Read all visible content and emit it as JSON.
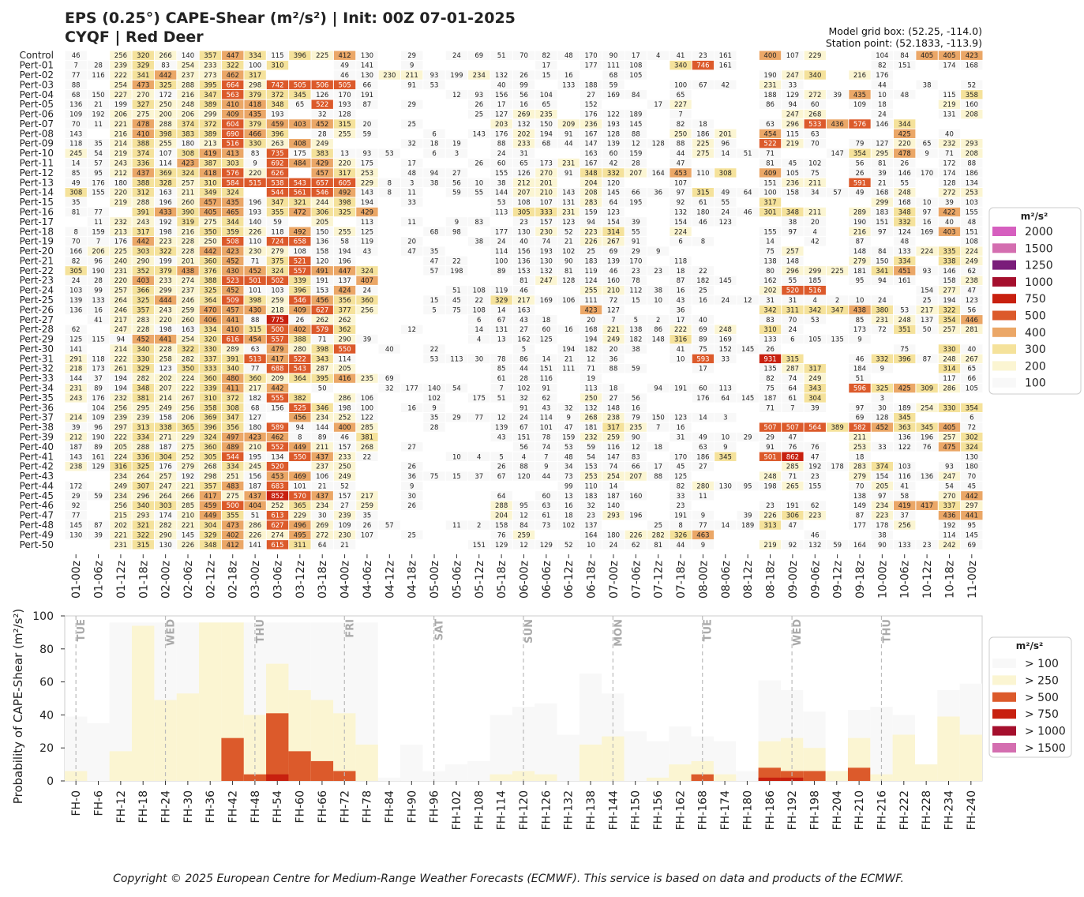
{
  "title": {
    "line1": "EPS (0.25°) CAPE-Shear (m²/s²) | Init: 00Z 07-01-2025",
    "line2": "CYQF | Red Deer"
  },
  "meta": {
    "grid_box": "Model grid box: (52.25, -114.0)",
    "station": "Station point: (52.1833, -113.9)"
  },
  "copyright": "Copyright © 2025 European Centre for Medium-Range Weather Forecasts (ECMWF). This service is based on data and products of the ECMWF.",
  "colors": {
    "c100": "#f8f8f8",
    "c200": "#fbf5d2",
    "c300": "#f5e29b",
    "c400": "#eba767",
    "c500": "#dc5a2b",
    "c750": "#c8200f",
    "c1000": "#a50f2d",
    "c1250": "#7a1d7a",
    "c1500": "#d46eb0",
    "c2000": "#d65fbf"
  },
  "chart_data": [
    {
      "type": "heatmap",
      "title": "",
      "x_tick_labels": [
        "01-00z",
        "01-06z",
        "01-12z",
        "01-18z",
        "02-00z",
        "02-06z",
        "02-12z",
        "02-18z",
        "03-00z",
        "03-06z",
        "03-12z",
        "03-18z",
        "04-00z",
        "04-06z",
        "04-12z",
        "04-18z",
        "05-00z",
        "05-06z",
        "05-12z",
        "05-18z",
        "06-00z",
        "06-06z",
        "06-12z",
        "06-18z",
        "07-00z",
        "07-06z",
        "07-12z",
        "07-18z",
        "08-00z",
        "08-06z",
        "08-12z",
        "08-18z",
        "09-00z",
        "09-06z",
        "09-12z",
        "09-18z",
        "10-00z",
        "10-06z",
        "10-12z",
        "10-18z",
        "11-00z"
      ],
      "members": [
        "Control",
        "Pert-01",
        "Pert-02",
        "Pert-03",
        "Pert-04",
        "Pert-05",
        "Pert-06",
        "Pert-07",
        "Pert-08",
        "Pert-09",
        "Pert-10",
        "Pert-11",
        "Pert-12",
        "Pert-13",
        "Pert-14",
        "Pert-15",
        "Pert-16",
        "Pert-17",
        "Pert-18",
        "Pert-19",
        "Pert-20",
        "Pert-21",
        "Pert-22",
        "Pert-23",
        "Pert-24",
        "Pert-25",
        "Pert-26",
        "Pert-27",
        "Pert-28",
        "Pert-29",
        "Pert-30",
        "Pert-31",
        "Pert-32",
        "Pert-33",
        "Pert-34",
        "Pert-35",
        "Pert-36",
        "Pert-37",
        "Pert-38",
        "Pert-39",
        "Pert-40",
        "Pert-41",
        "Pert-42",
        "Pert-43",
        "Pert-44",
        "Pert-45",
        "Pert-46",
        "Pert-47",
        "Pert-48",
        "Pert-49",
        "Pert-50"
      ],
      "rows": [
        "46,,256,320,266,140,357,447,334,115,396,225,412,130,,29,,24,69,51,70,82,48,170,90,17,4,41,23,161,,400,107,229,,,104,84,405,405,423",
        "7,28,239,329,83,254,233,322,100,310,,,49,141,,9,,,,,,17,,177,111,108,,340,746,161,,,,,,,82,151,,174,168",
        "77,116,222,341,442,237,273,462,317,,,,46,130,230,211,93,199,234,132,26,15,16,,68,105,,,,,,190,247,340,,216,176",
        "88,,254,473,325,288,395,664,298,742,505,506,505,66,,91,53,,,40,99,,133,188,59,,,100,67,42,,231,33,,,,44,,38,,52",
        "68,150,227,270,172,216,347,563,379,372,345,126,170,191,,,,12,93,156,56,104,,27,169,84,,65,,,,188,129,272,39,435,10,48,,115,358",
        "136,21,199,327,250,248,389,410,418,348,65,522,193,87,,29,,,26,17,16,65,,152,,,17,227,,,,86,94,60,,109,18,,,219,160",
        "109,192,206,275,200,206,299,409,435,193,,32,128,,,,,,25,127,269,235,,176,122,189,,7,,,,,247,268,,,24,,,131,208",
        "70,11,221,478,288,374,372,604,379,459,403,452,315,20,,25,,,,203,132,150,209,236,193,145,,82,18,,,63,296,533,436,576,146,344,,,",
        "143,,216,410,398,383,389,690,466,396,,28,255,59,,,6,,143,176,202,194,91,167,128,88,,250,186,201,,454,115,63,,,,425,,40,",
        "118,35,214,388,255,180,213,516,330,263,408,249,,,,32,18,19,,88,233,68,44,147,139,12,128,88,225,96,,522,219,70,,79,127,220,65,232,293",
        "245,54,219,374,107,308,419,413,83,735,175,383,13,93,53,,6,3,,24,31,,,163,60,159,,44,275,14,51,71,,,147,354,295,478,9,71,208",
        "14,57,243,336,114,423,387,303,9,692,484,429,220,175,,17,,,26,60,65,173,231,167,42,28,,47,,,,81,45,102,,56,81,26,,172,88",
        "85,95,212,437,369,324,418,576,220,626,,457,317,253,,48,94,27,,155,126,270,91,348,332,207,164,453,110,308,,409,105,75,,26,39,146,170,174,186",
        "49,176,180,388,328,257,310,584,515,538,543,657,605,229,8,3,38,56,10,38,212,201,,204,120,,,107,,,,151,236,211,,591,21,55,,128,134",
        "308,155,220,312,163,211,349,324,,544,561,546,492,143,8,11,,59,55,144,207,210,143,208,145,66,36,97,315,49,64,100,158,34,57,49,168,248,,272,253",
        "35,,219,288,196,260,457,435,196,347,321,244,398,194,,33,,,,53,108,107,131,283,64,195,,92,61,55,,317,,,,,299,168,10,39,103",
        "81,77,,391,433,390,405,465,193,355,472,306,325,429,,,,,,113,305,333,231,159,123,,,132,180,24,46,301,348,211,,289,183,348,97,422,155",
        ",11,232,243,192,319,275,344,140,59,,205,,113,,11,,9,83,,23,157,123,94,154,39,,154,46,123,,,38,20,,190,151,332,16,40,48",
        "8,159,213,317,198,216,350,359,226,118,492,150,255,125,,,68,98,,177,130,230,52,223,314,55,,224,,,,155,97,4,,216,97,124,169,403,151",
        "70,7,176,442,223,228,250,508,110,724,658,136,58,119,,20,,,38,24,40,74,21,226,267,91,,6,8,,,14,,42,,87,,48,,,108",
        "166,206,225,303,322,228,442,423,230,279,108,158,194,43,,47,35,,,114,156,193,102,25,69,29,9,,,,,75,257,,,148,84,133,224,335,224",
        "82,96,240,290,199,201,360,452,71,375,521,120,196,,,,47,22,,100,136,130,90,183,139,170,,118,,,,138,148,,,279,150,334,,338,249",
        "305,190,231,352,379,438,376,430,452,324,557,491,447,324,,,57,198,,89,153,132,81,119,46,23,23,18,22,,,80,296,299,225,181,341,451,93,146,62",
        "24,28,220,403,233,274,388,523,501,502,339,191,137,407,,,,,,,81,247,128,124,160,78,,87,182,145,,162,55,185,,95,94,161,,158,238",
        "103,99,257,366,299,237,325,452,101,103,396,153,424,24,,,,51,108,119,46,,,255,210,112,38,16,25,,,202,520,516,,,,,154,277,47",
        "139,133,264,325,444,246,364,509,398,259,546,456,356,360,,,15,45,22,329,217,169,106,111,72,15,10,43,16,24,12,31,31,4,2,10,24,,25,194,123",
        "136,16,246,357,243,259,470,457,430,218,409,627,377,256,,,5,75,108,14,163,,,423,127,,,36,,,,342,311,342,347,438,380,53,217,322,56",
        ",41,217,283,220,260,406,441,88,775,26,262,262,,,,,,6,67,43,18,,20,7,5,2,17,40,,,83,70,53,,85,231,248,137,354,446",
        "62,,247,228,198,163,334,410,315,500,402,579,362,,,12,,,14,131,27,60,16,168,221,138,86,222,69,248,,310,24,,,173,72,351,50,257,281",
        "125,115,94,452,441,254,320,616,454,557,388,71,290,39,,,,,4,13,162,125,,194,249,182,148,316,89,169,,133,6,105,135,9,,,,,",
        "141,,214,340,228,322,330,289,63,479,280,398,550,,40,,22,,,,5,,194,182,20,38,,41,75,152,145,26,,,,,,75,,330,40",
        "291,118,222,330,258,282,337,391,513,417,522,343,114,,,,53,113,30,78,86,14,21,12,36,,,10,593,33,,931,315,,,46,332,396,87,248,267",
        "218,173,261,329,123,350,333,340,77,688,543,287,205,,,,,,,85,44,151,111,71,88,59,,,17,,,135,287,317,,184,9,,,314,65",
        "144,37,194,282,202,224,360,480,360,209,364,395,416,235,69,,,,,61,28,116,,19,,,,,,,,82,74,249,,51,,,,117,66",
        "231,89,194,348,207,222,339,411,217,442,,50,,,32,177,140,54,,7,102,91,,113,18,,94,191,60,113,,75,64,343,,596,325,425,309,286,105",
        "243,176,232,381,214,267,310,372,182,555,382,,286,106,,,102,,175,51,32,62,,250,27,56,,,176,64,145,187,61,304,,,3,,,,",
        ",104,256,295,249,256,358,308,68,156,525,346,198,100,,16,9,,,,91,43,32,132,148,16,,,,,,71,7,39,,97,30,189,254,330,354",
        "214,109,239,239,158,206,369,347,127,,456,234,252,122,,,35,29,77,12,24,114,9,268,238,79,150,123,14,3,,,,,,69,128,345,,,6",
        "39,96,297,313,338,365,396,356,180,589,94,144,400,285,,,28,,,139,67,101,47,181,317,235,7,16,,,,507,507,564,389,582,452,363,345,405,72",
        "212,190,222,334,271,229,324,497,423,462,8,89,46,381,,,,,,43,151,78,159,232,259,90,,31,49,10,29,29,47,,,211,,136,196,257,302",
        "187,89,205,288,187,275,360,489,210,552,449,211,157,268,,27,,,,,56,74,53,59,116,12,18,,63,9,,91,76,76,,253,33,122,76,475,324",
        "143,161,224,336,304,252,305,544,195,134,550,437,233,22,,,,10,4,5,4,7,48,54,147,83,,170,186,345,,501,862,47,,18,,,,,130",
        "238,129,316,325,176,279,268,334,245,520,,237,250,,,26,,,,26,88,9,34,153,74,66,17,45,27,,,,285,192,178,283,374,103,,93,180",
        ",,234,264,257,192,298,251,156,453,469,106,249,,,36,75,15,37,67,120,44,73,253,254,207,88,125,,,,248,71,23,,279,154,116,136,247,70",
        "172,,249,307,247,221,357,483,187,683,101,21,52,,,9,,,,,,,99,110,14,,,82,280,130,95,198,265,155,,70,205,41,,54,45",
        "29,59,234,296,264,266,417,275,437,852,570,437,157,217,,30,,,,64,,60,13,183,187,160,,33,11,,,,,,,138,97,58,,270,442",
        "92,,256,340,303,285,459,500,404,252,365,234,27,259,,26,,,,288,95,63,16,32,140,,,23,,,,23,191,62,,149,234,419,417,337,297",
        "77,,215,293,174,210,449,355,51,613,229,30,239,35,,,,,,204,12,61,18,23,293,196,,191,9,,39,226,306,223,,87,223,37,,436,441",
        "145,87,202,321,282,221,304,473,286,627,496,269,109,26,57,,,11,2,158,84,73,102,137,,,25,8,77,14,189,313,47,,,177,178,256,,192,95",
        "130,39,221,322,290,145,329,402,226,274,495,272,230,107,,25,,,,76,259,,,164,180,226,282,326,463,,,,,46,,,38,,,114,145",
        ",,231,315,130,226,348,412,141,615,311,64,21,,,,,,151,129,12,129,52,10,24,62,81,44,9,,,219,92,132,59,164,90,133,23,242,69"
      ],
      "legend": {
        "title": "m²/s²",
        "entries": [
          {
            "label": "2000",
            "color": "#d65fbf"
          },
          {
            "label": "1500",
            "color": "#d46eb0"
          },
          {
            "label": "1250",
            "color": "#7a1d7a"
          },
          {
            "label": "1000",
            "color": "#a50f2d"
          },
          {
            "label": "750",
            "color": "#c8200f"
          },
          {
            "label": "500",
            "color": "#dc5a2b"
          },
          {
            "label": "400",
            "color": "#eba767"
          },
          {
            "label": "300",
            "color": "#f5e29b"
          },
          {
            "label": "200",
            "color": "#fbf5d2"
          },
          {
            "label": "100",
            "color": "#f8f8f8"
          }
        ]
      }
    },
    {
      "type": "bar",
      "title": "",
      "ylabel": "Probability of CAPE-Shear (m²/s²)",
      "ylim": [
        0,
        100
      ],
      "yticks": [
        0,
        20,
        40,
        60,
        80,
        100
      ],
      "categories": [
        "FH-0",
        "FH-6",
        "FH-12",
        "FH-18",
        "FH-24",
        "FH-30",
        "FH-36",
        "FH-42",
        "FH-48",
        "FH-54",
        "FH-60",
        "FH-66",
        "FH-72",
        "FH-78",
        "FH-84",
        "FH-90",
        "FH-96",
        "FH-102",
        "FH-108",
        "FH-114",
        "FH-120",
        "FH-126",
        "FH-132",
        "FH-138",
        "FH-144",
        "FH-150",
        "FH-156",
        "FH-162",
        "FH-168",
        "FH-174",
        "FH-180",
        "FH-186",
        "FH-192",
        "FH-198",
        "FH-204",
        "FH-210",
        "FH-216",
        "FH-222",
        "FH-228",
        "FH-234",
        "FH-240"
      ],
      "day_markers": [
        {
          "label": "TUE",
          "at": "FH-0"
        },
        {
          "label": "WED",
          "at": "FH-24"
        },
        {
          "label": "THU",
          "at": "FH-48"
        },
        {
          "label": "FRI",
          "at": "FH-72"
        },
        {
          "label": "SAT",
          "at": "FH-96"
        },
        {
          "label": "SUN",
          "at": "FH-120"
        },
        {
          "label": "MON",
          "at": "FH-144"
        },
        {
          "label": "TUE",
          "at": "FH-168"
        },
        {
          "label": "WED",
          "at": "FH-192"
        },
        {
          "label": "THU",
          "at": "FH-216"
        }
      ],
      "series": [
        {
          "name": "> 100",
          "color": "#f8f8f8",
          "values": [
            39,
            35,
            96,
            96,
            96,
            96,
            96,
            96,
            96,
            96,
            96,
            96,
            96,
            96,
            2,
            22,
            6,
            10,
            12,
            40,
            45,
            47,
            28,
            65,
            53,
            30,
            24,
            33,
            27,
            24,
            6,
            61,
            55,
            42,
            4,
            43,
            45,
            40,
            10,
            55,
            59
          ]
        },
        {
          "name": "> 250",
          "color": "#fbf5d2",
          "values": [
            6,
            0,
            18,
            94,
            49,
            53,
            96,
            96,
            40,
            71,
            55,
            49,
            41,
            22,
            0,
            0,
            0,
            0,
            0,
            4,
            6,
            4,
            0,
            22,
            27,
            0,
            2,
            10,
            12,
            4,
            0,
            24,
            26,
            20,
            6,
            26,
            4,
            28,
            10,
            39,
            28
          ]
        },
        {
          "name": "> 500",
          "color": "#dc5a2b",
          "values": [
            0,
            0,
            0,
            0,
            0,
            0,
            0,
            26,
            4,
            41,
            18,
            12,
            6,
            0,
            0,
            0,
            0,
            0,
            0,
            0,
            0,
            0,
            0,
            0,
            0,
            0,
            0,
            0,
            4,
            0,
            0,
            8,
            6,
            6,
            0,
            8,
            0,
            0,
            0,
            0,
            0
          ]
        },
        {
          "name": "> 750",
          "color": "#c8200f",
          "values": [
            0,
            0,
            0,
            0,
            0,
            0,
            0,
            0,
            0,
            4,
            0,
            0,
            0,
            0,
            0,
            0,
            0,
            0,
            0,
            0,
            0,
            0,
            0,
            0,
            0,
            0,
            0,
            0,
            0,
            0,
            0,
            2,
            2,
            0,
            0,
            0,
            0,
            0,
            0,
            0,
            0
          ]
        },
        {
          "name": "> 1000",
          "color": "#a50f2d",
          "values": [
            0,
            0,
            0,
            0,
            0,
            0,
            0,
            0,
            0,
            0,
            0,
            0,
            0,
            0,
            0,
            0,
            0,
            0,
            0,
            0,
            0,
            0,
            0,
            0,
            0,
            0,
            0,
            0,
            0,
            0,
            0,
            0,
            0,
            0,
            0,
            0,
            0,
            0,
            0,
            0,
            0
          ]
        },
        {
          "name": "> 1500",
          "color": "#d46eb0",
          "values": [
            0,
            0,
            0,
            0,
            0,
            0,
            0,
            0,
            0,
            0,
            0,
            0,
            0,
            0,
            0,
            0,
            0,
            0,
            0,
            0,
            0,
            0,
            0,
            0,
            0,
            0,
            0,
            0,
            0,
            0,
            0,
            0,
            0,
            0,
            0,
            0,
            0,
            0,
            0,
            0,
            0
          ]
        }
      ],
      "legend": {
        "title": "m²/s²"
      }
    }
  ]
}
